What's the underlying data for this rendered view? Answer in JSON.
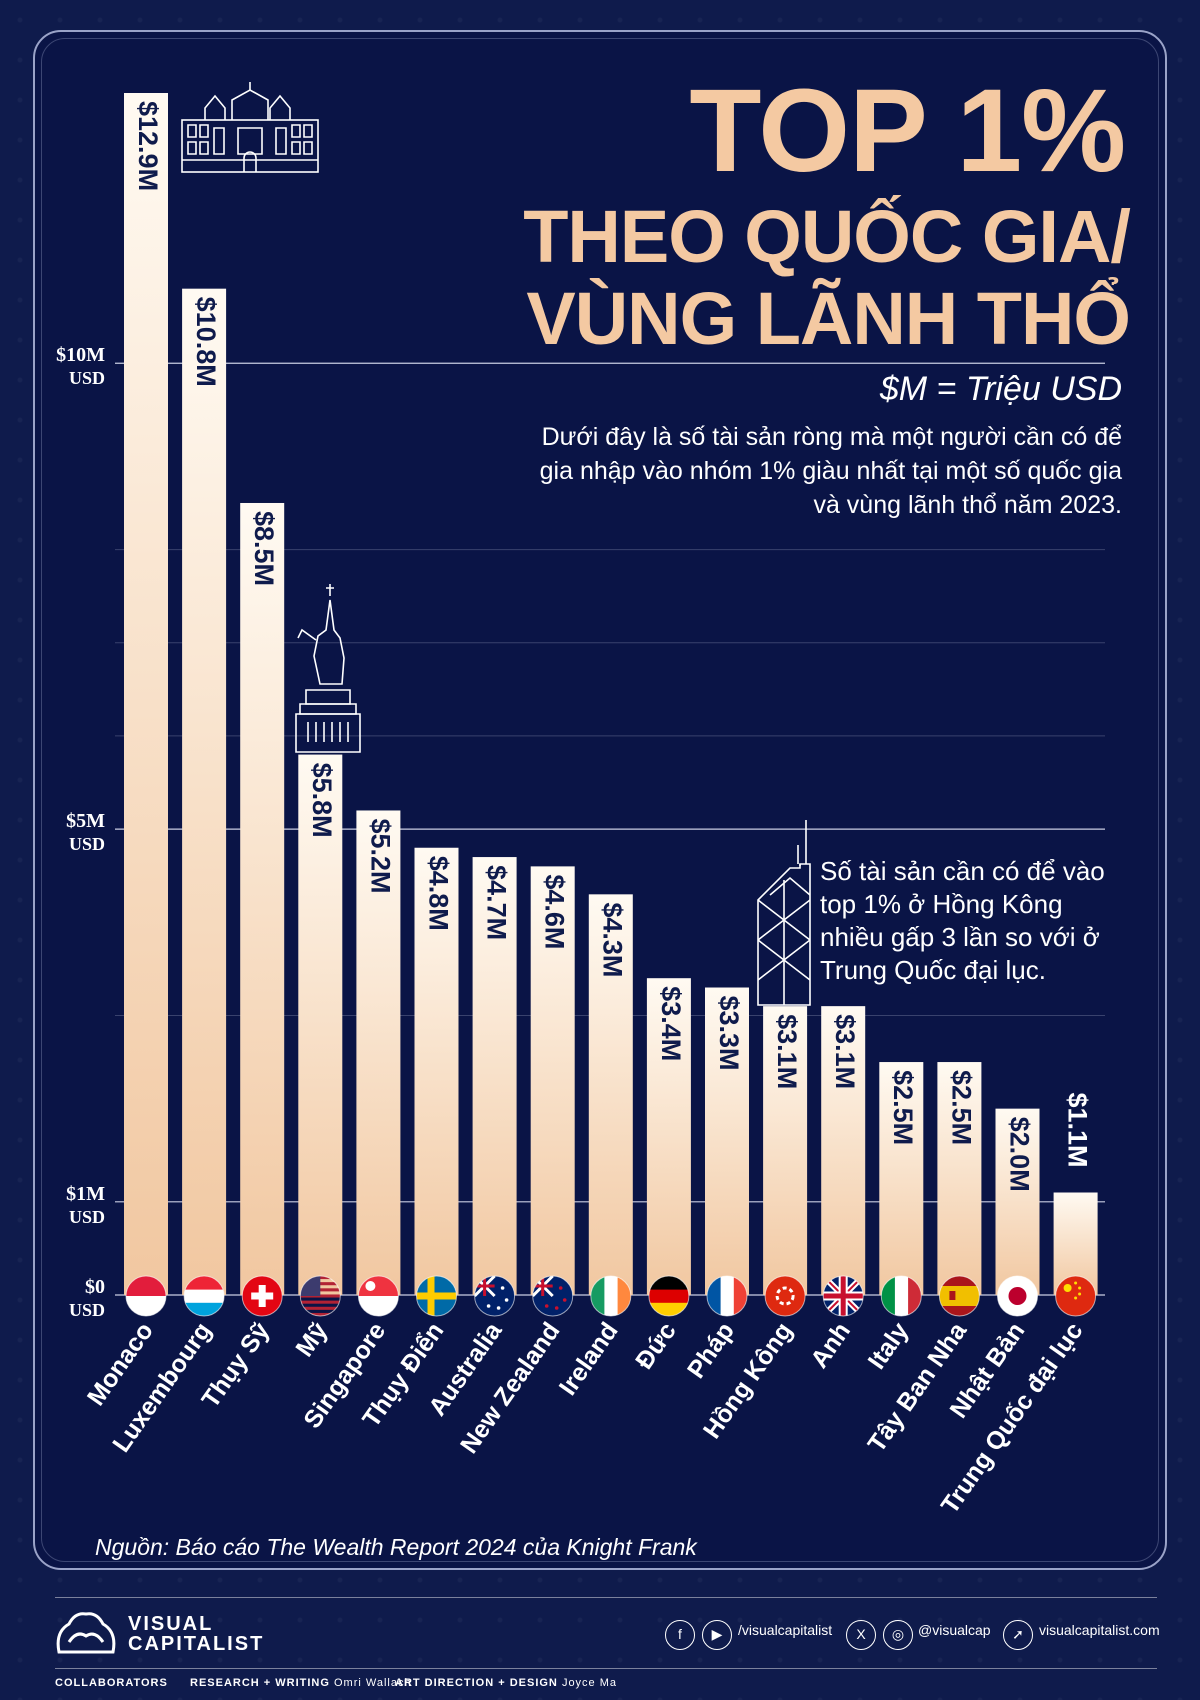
{
  "title": {
    "line1": "TOP 1%",
    "line2": "THEO QUỐC GIA/",
    "line3": "VÙNG LÃNH THỔ"
  },
  "unit_note": "$M = Triệu USD",
  "description": "Dưới đây là số tài sản ròng mà một người cần có để gia nhập vào nhóm 1% giàu nhất tại một số quốc gia và vùng lãnh thổ năm 2023.",
  "hk_note": "Số tài sản cần có để vào top 1% ở Hồng Kông nhiều gấp 3 lần so với ở Trung Quốc đại lục.",
  "source": "Nguồn: Báo cáo The Wealth Report 2024 của Knight Frank",
  "footer": {
    "brand_line1": "VISUAL",
    "brand_line2": "CAPITALIST",
    "social_1": "/visualcapitalist",
    "social_2": "@visualcap",
    "social_3": "visualcapitalist.com",
    "collaborators_label": "COLLABORATORS",
    "research_label": "RESEARCH + WRITING",
    "research_name": "Omri Wallach",
    "design_label": "ART DIRECTION + DESIGN",
    "design_name": "Joyce Ma"
  },
  "colors": {
    "background": "#0a1446",
    "title": "#f4c9a2",
    "bar_top": "#fffaf2",
    "bar_bottom": "#f1c7a0",
    "value_text": "#0f1b4c"
  },
  "chart_data": {
    "type": "bar",
    "categories": [
      "Monaco",
      "Luxembourg",
      "Thụy Sỹ",
      "Mỹ",
      "Singapore",
      "Thụy Điển",
      "Australia",
      "New Zealand",
      "Ireland",
      "Đức",
      "Pháp",
      "Hồng Kông",
      "Anh",
      "Italy",
      "Tây Ban Nha",
      "Nhật Bản",
      "Trung Quốc đại lục"
    ],
    "values": [
      12.9,
      10.8,
      8.5,
      5.8,
      5.2,
      4.8,
      4.7,
      4.6,
      4.3,
      3.4,
      3.3,
      3.1,
      3.1,
      2.5,
      2.5,
      2.0,
      1.1
    ],
    "value_labels": [
      "$12.9M",
      "$10.8M",
      "$8.5M",
      "$5.8M",
      "$5.2M",
      "$4.8M",
      "$4.7M",
      "$4.6M",
      "$4.3M",
      "$3.4M",
      "$3.3M",
      "$3.1M",
      "$3.1M",
      "$2.5M",
      "$2.5M",
      "$2.0M",
      "$1.1M"
    ],
    "flags": [
      "flag-monaco-icon",
      "flag-luxembourg-icon",
      "flag-switzerland-icon",
      "flag-usa-icon",
      "flag-singapore-icon",
      "flag-sweden-icon",
      "flag-australia-icon",
      "flag-new-zealand-icon",
      "flag-ireland-icon",
      "flag-germany-icon",
      "flag-france-icon",
      "flag-hong-kong-icon",
      "flag-uk-icon",
      "flag-italy-icon",
      "flag-spain-icon",
      "flag-japan-icon",
      "flag-china-icon"
    ],
    "yticks": [
      {
        "value": 0,
        "label": "$0",
        "unit": "USD"
      },
      {
        "value": 1,
        "label": "$1M",
        "unit": "USD"
      },
      {
        "value": 5,
        "label": "$5M",
        "unit": "USD"
      },
      {
        "value": 10,
        "label": "$10M",
        "unit": "USD"
      }
    ],
    "ylim": [
      0,
      12.9
    ],
    "grid": true
  }
}
